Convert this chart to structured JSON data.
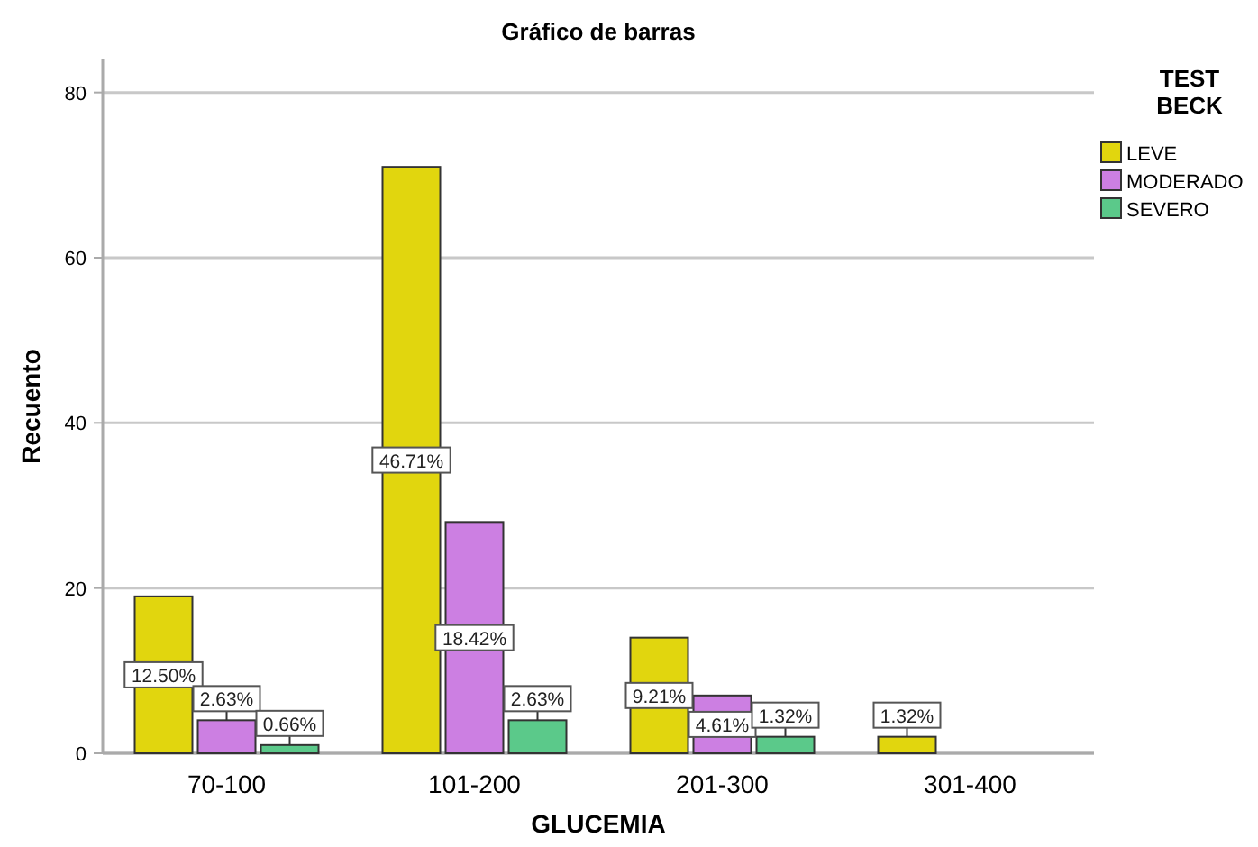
{
  "chart_data": {
    "type": "bar",
    "title": "Gráfico de barras",
    "xlabel": "GLUCEMIA",
    "ylabel": "Recuento",
    "legend_title": "TEST BECK",
    "categories": [
      "70-100",
      "101-200",
      "201-300",
      "301-400"
    ],
    "series": [
      {
        "name": "LEVE",
        "color": "#e1d60e",
        "values": [
          19,
          71,
          14,
          2
        ]
      },
      {
        "name": "MODERADO",
        "color": "#cc7fe2",
        "values": [
          4,
          28,
          7,
          null
        ]
      },
      {
        "name": "SEVERO",
        "color": "#5bc98a",
        "values": [
          1,
          4,
          2,
          null
        ]
      }
    ],
    "annotations": [
      "12.50%",
      "2.63%",
      "0.66%",
      "46.71%",
      "18.42%",
      "2.63%",
      "9.21%",
      "4.61%",
      "1.32%",
      "1.32%"
    ],
    "ylim": [
      0,
      84
    ],
    "yticks": [
      0,
      20,
      40,
      60,
      80
    ],
    "grid": "y",
    "legend": "top right"
  }
}
